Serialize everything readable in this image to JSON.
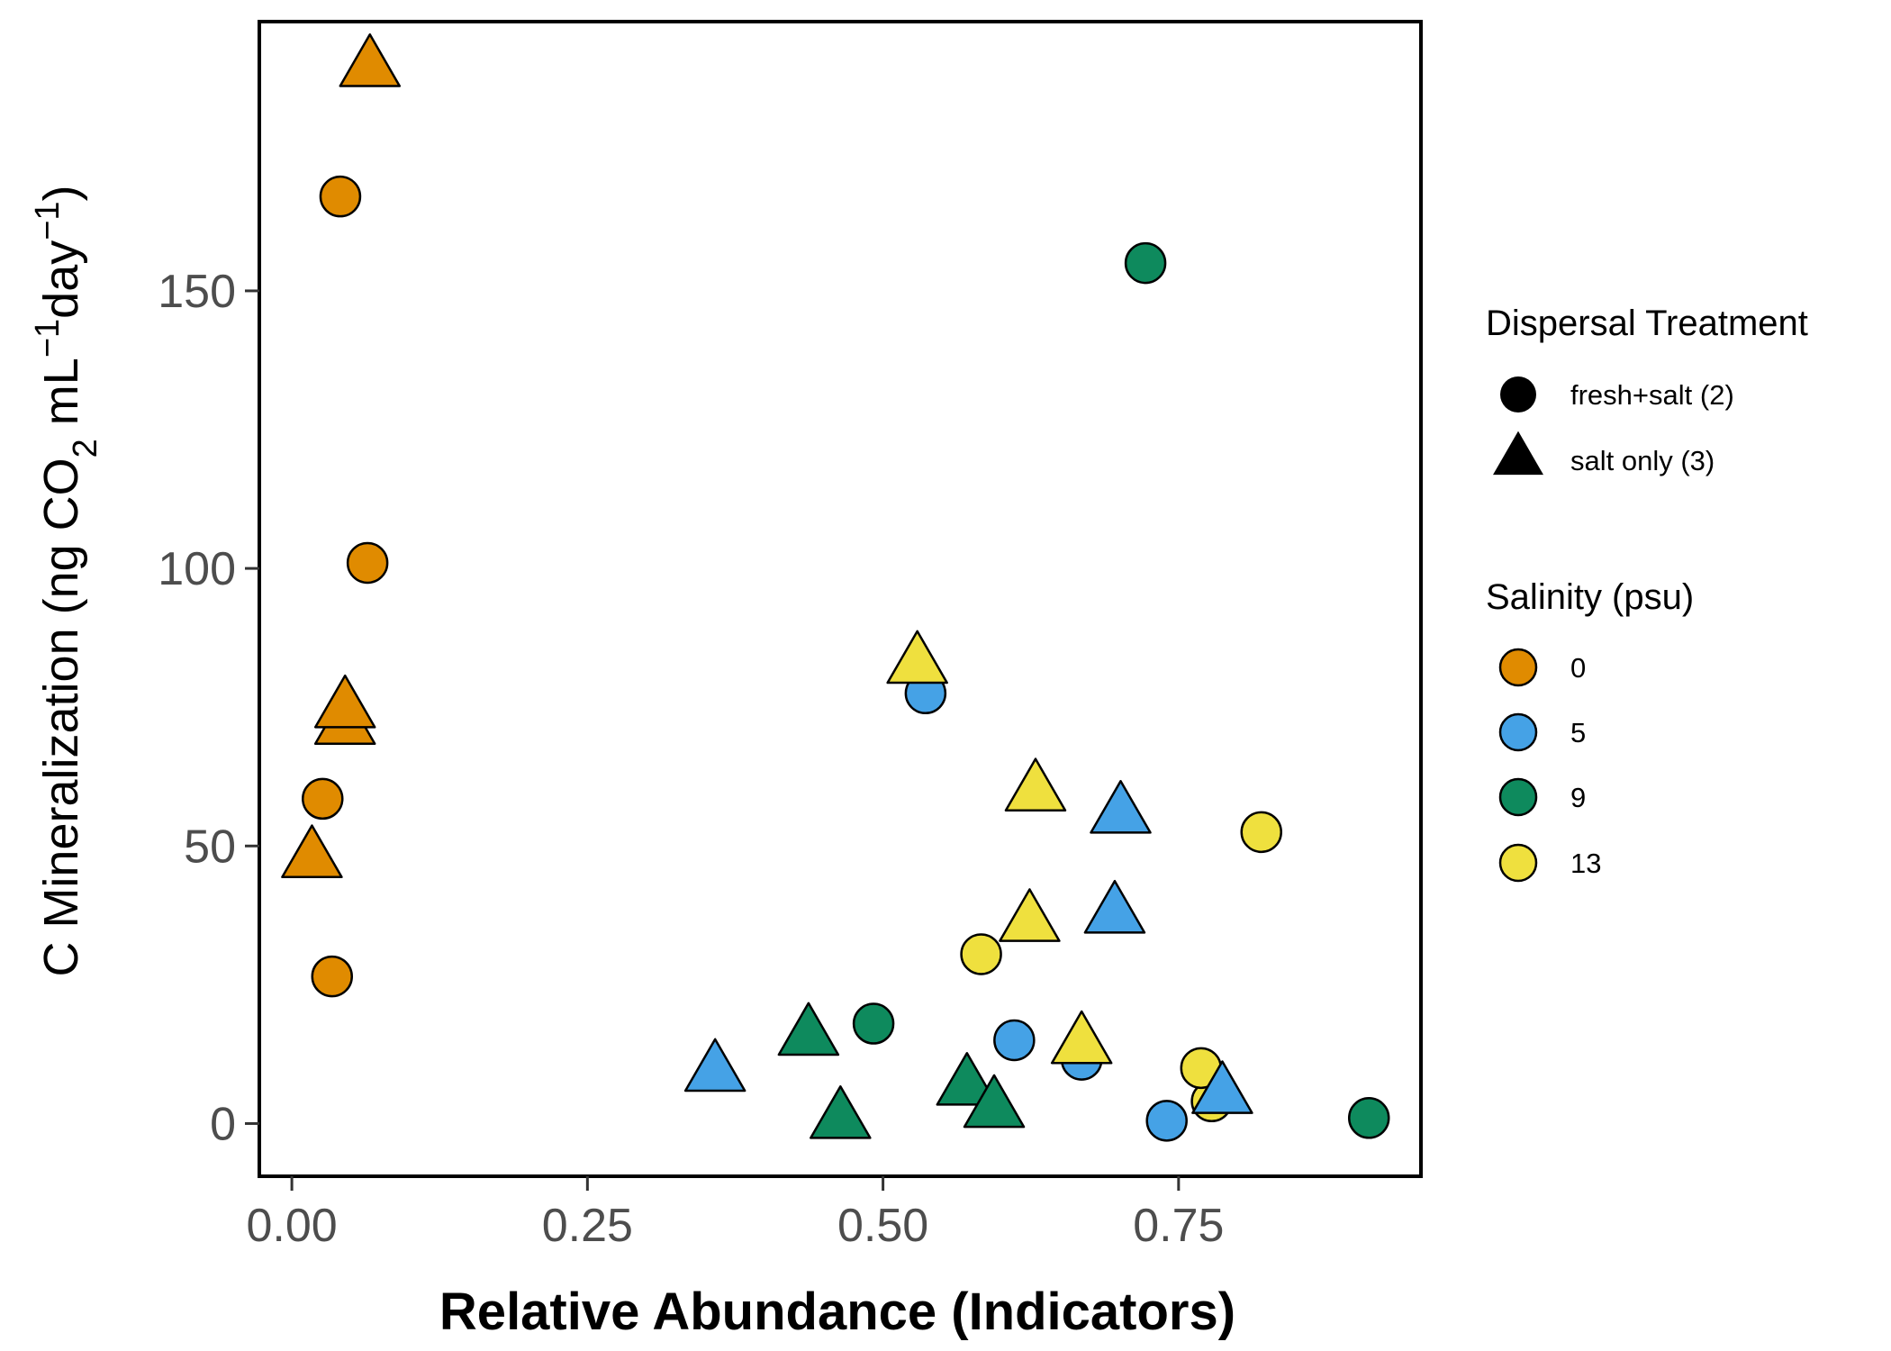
{
  "chart_data": {
    "type": "scatter",
    "xlabel": "Relative Abundance (Indicators)",
    "ylabel": {
      "prefix": "C Mineralization (ng CO",
      "sub": "2",
      "mid1": " mL",
      "sup1": "−1",
      "mid2": "day",
      "sup2": "−1",
      "suffix": ")"
    },
    "xlim": [
      -0.0275,
      0.955
    ],
    "ylim": [
      -9.5,
      198.5
    ],
    "xticks": [
      0.0,
      0.25,
      0.5,
      0.75
    ],
    "xtick_labels": [
      "0.00",
      "0.25",
      "0.50",
      "0.75"
    ],
    "yticks": [
      0,
      50,
      100,
      150
    ],
    "ytick_labels": [
      "0",
      "50",
      "100",
      "150"
    ],
    "grid": false,
    "legend_position": "right",
    "legends": {
      "shape": {
        "title": "Dispersal Treatment",
        "items": [
          {
            "label": "fresh+salt (2)",
            "shape": "circle"
          },
          {
            "label": "salt only (3)",
            "shape": "triangle"
          }
        ]
      },
      "color": {
        "title": "Salinity (psu)",
        "items": [
          {
            "label": "0",
            "color": "#E08B00"
          },
          {
            "label": "5",
            "color": "#45A2E6"
          },
          {
            "label": "9",
            "color": "#0E8A5D"
          },
          {
            "label": "13",
            "color": "#EFE03E"
          }
        ]
      }
    },
    "colors": {
      "0": "#E08B00",
      "5": "#45A2E6",
      "9": "#0E8A5D",
      "13": "#EFE03E"
    },
    "series": [
      {
        "shape": "circle",
        "points": [
          {
            "x": 0.041,
            "y": 167.0,
            "salinity": "0"
          },
          {
            "x": 0.064,
            "y": 101.0,
            "salinity": "0"
          },
          {
            "x": 0.026,
            "y": 58.5,
            "salinity": "0"
          },
          {
            "x": 0.034,
            "y": 26.5,
            "salinity": "0"
          },
          {
            "x": 0.536,
            "y": 77.5,
            "salinity": "5"
          },
          {
            "x": 0.611,
            "y": 15.0,
            "salinity": "5"
          },
          {
            "x": 0.668,
            "y": 11.5,
            "salinity": "5"
          },
          {
            "x": 0.74,
            "y": 0.5,
            "salinity": "5"
          },
          {
            "x": 0.722,
            "y": 155.0,
            "salinity": "9"
          },
          {
            "x": 0.492,
            "y": 18.0,
            "salinity": "9"
          },
          {
            "x": 0.911,
            "y": 1.0,
            "salinity": "9"
          },
          {
            "x": 0.583,
            "y": 30.5,
            "salinity": "13"
          },
          {
            "x": 0.82,
            "y": 52.5,
            "salinity": "13"
          },
          {
            "x": 0.778,
            "y": 4.0,
            "salinity": "13"
          },
          {
            "x": 0.769,
            "y": 10.0,
            "salinity": "13"
          }
        ]
      },
      {
        "shape": "triangle",
        "points": [
          {
            "x": 0.066,
            "y": 190.0,
            "salinity": "0"
          },
          {
            "x": 0.045,
            "y": 71.5,
            "salinity": "0"
          },
          {
            "x": 0.045,
            "y": 74.5,
            "salinity": "0"
          },
          {
            "x": 0.017,
            "y": 47.5,
            "salinity": "0"
          },
          {
            "x": 0.358,
            "y": 9.0,
            "salinity": "5"
          },
          {
            "x": 0.701,
            "y": 55.5,
            "salinity": "5"
          },
          {
            "x": 0.696,
            "y": 37.5,
            "salinity": "5"
          },
          {
            "x": 0.787,
            "y": 5.0,
            "salinity": "5"
          },
          {
            "x": 0.437,
            "y": 15.5,
            "salinity": "9"
          },
          {
            "x": 0.464,
            "y": 0.5,
            "salinity": "9"
          },
          {
            "x": 0.571,
            "y": 6.5,
            "salinity": "9"
          },
          {
            "x": 0.594,
            "y": 2.5,
            "salinity": "9"
          },
          {
            "x": 0.529,
            "y": 82.5,
            "salinity": "13"
          },
          {
            "x": 0.629,
            "y": 59.5,
            "salinity": "13"
          },
          {
            "x": 0.624,
            "y": 36.0,
            "salinity": "13"
          },
          {
            "x": 0.668,
            "y": 14.0,
            "salinity": "13"
          }
        ]
      }
    ]
  }
}
